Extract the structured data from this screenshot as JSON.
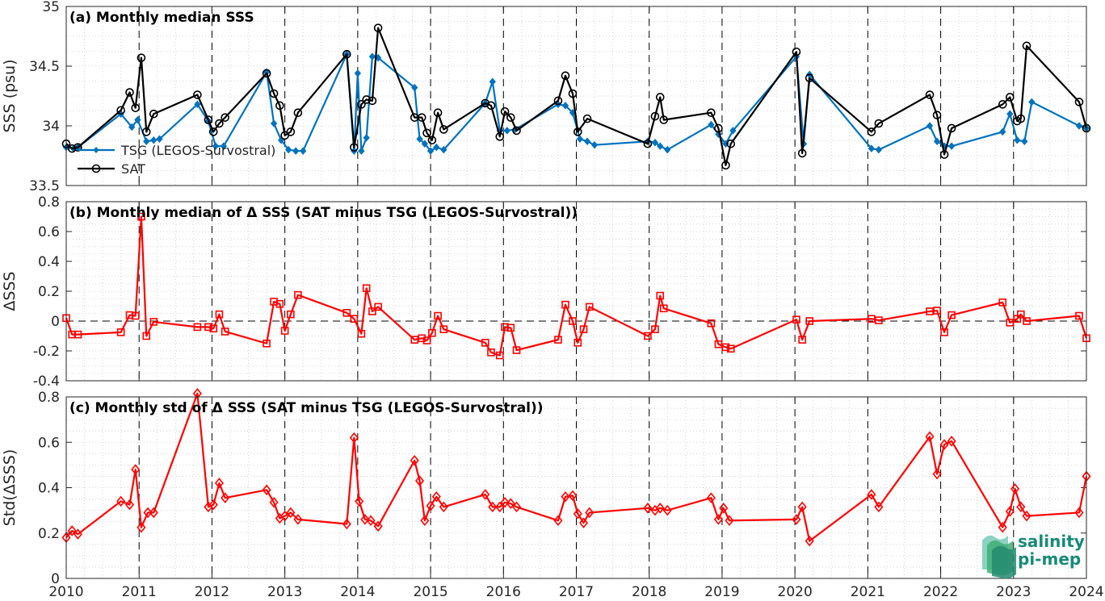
{
  "chart_data": [
    {
      "type": "line",
      "title": "(a) Monthly median SSS",
      "ylabel": "SSS (psu)",
      "xlim": [
        2010,
        2024
      ],
      "ylim": [
        33.5,
        35
      ],
      "yticks": [
        33.5,
        34,
        34.5,
        35
      ],
      "yticklabels": [
        "33.5",
        "34",
        "34.5",
        "35"
      ],
      "grid": "dotted minor",
      "legend_position": "bottom-left",
      "series": [
        {
          "name": "TSG (LEGOS-Survostral)",
          "color": "#0072BD",
          "marker": "diamond-filled",
          "x": [
            2010.0,
            2010.1,
            2010.16,
            2010.75,
            2010.9,
            2010.98,
            2011.1,
            2011.2,
            2011.28,
            2011.8,
            2011.95,
            2012.05,
            2012.16,
            2012.75,
            2012.85,
            2012.95,
            2013.05,
            2013.15,
            2013.25,
            2013.85,
            2013.95,
            2014.0,
            2014.05,
            2014.12,
            2014.2,
            2014.28,
            2014.78,
            2014.85,
            2014.92,
            2015.0,
            2015.08,
            2015.18,
            2015.75,
            2015.85,
            2015.95,
            2016.05,
            2016.16,
            2016.75,
            2016.85,
            2016.95,
            2017.05,
            2017.15,
            2017.25,
            2017.98,
            2018.08,
            2018.15,
            2018.25,
            2018.85,
            2018.95,
            2019.05,
            2019.15,
            2020.02,
            2020.12,
            2020.2,
            2021.05,
            2021.15,
            2021.85,
            2021.95,
            2022.05,
            2022.15,
            2022.85,
            2022.95,
            2023.05,
            2023.15,
            2023.25,
            2023.9,
            2024.0
          ],
          "values": [
            33.82,
            33.81,
            33.82,
            34.1,
            33.99,
            34.05,
            33.87,
            33.88,
            33.89,
            34.18,
            34.04,
            33.83,
            33.83,
            34.45,
            34.02,
            33.88,
            33.8,
            33.79,
            33.79,
            34.6,
            33.79,
            34.44,
            33.79,
            33.9,
            34.58,
            34.57,
            34.32,
            33.89,
            33.85,
            33.79,
            33.82,
            33.8,
            34.19,
            34.37,
            33.96,
            33.96,
            33.97,
            34.18,
            34.17,
            34.11,
            33.89,
            33.87,
            33.84,
            33.87,
            33.86,
            33.83,
            33.8,
            34.01,
            33.93,
            33.85,
            33.96,
            34.58,
            33.85,
            34.43,
            33.81,
            33.8,
            34.0,
            33.87,
            33.83,
            33.83,
            33.95,
            34.1,
            33.88,
            33.87,
            34.2,
            34.0,
            33.98
          ]
        },
        {
          "name": "SAT",
          "color": "#000000",
          "marker": "circle-open",
          "x": [
            2010.0,
            2010.08,
            2010.16,
            2010.75,
            2010.87,
            2010.95,
            2011.03,
            2011.1,
            2011.2,
            2011.8,
            2011.95,
            2012.02,
            2012.1,
            2012.18,
            2012.75,
            2012.85,
            2012.93,
            2013.0,
            2013.08,
            2013.18,
            2013.85,
            2013.95,
            2014.05,
            2014.12,
            2014.2,
            2014.28,
            2014.78,
            2014.88,
            2014.95,
            2015.02,
            2015.1,
            2015.18,
            2015.75,
            2015.83,
            2015.95,
            2016.02,
            2016.1,
            2016.18,
            2016.75,
            2016.85,
            2016.95,
            2017.02,
            2017.15,
            2017.98,
            2018.08,
            2018.15,
            2018.2,
            2018.85,
            2018.95,
            2019.05,
            2019.12,
            2020.02,
            2020.1,
            2020.2,
            2021.05,
            2021.15,
            2021.85,
            2021.95,
            2022.05,
            2022.15,
            2022.85,
            2022.95,
            2023.05,
            2023.1,
            2023.18,
            2023.9,
            2024.0
          ],
          "values": [
            33.85,
            33.81,
            33.82,
            34.13,
            34.28,
            34.15,
            34.57,
            33.95,
            34.1,
            34.26,
            34.05,
            33.95,
            34.02,
            34.07,
            34.44,
            34.27,
            34.17,
            33.92,
            33.95,
            34.11,
            34.6,
            33.82,
            34.18,
            34.22,
            34.21,
            34.82,
            34.07,
            34.07,
            33.94,
            33.88,
            34.11,
            33.97,
            34.19,
            34.17,
            33.91,
            34.12,
            34.07,
            33.96,
            34.21,
            34.42,
            34.27,
            33.95,
            34.06,
            33.85,
            34.08,
            34.24,
            34.05,
            34.11,
            33.98,
            33.67,
            33.85,
            34.62,
            33.77,
            34.4,
            33.95,
            34.02,
            34.26,
            34.09,
            33.76,
            33.98,
            34.18,
            34.24,
            34.04,
            34.06,
            34.67,
            34.2,
            33.98
          ]
        }
      ]
    },
    {
      "type": "line",
      "title": "(b) Monthly median of Δ SSS (SAT minus TSG (LEGOS-Survostral))",
      "ylabel": "ΔSSS",
      "xlim": [
        2010,
        2024
      ],
      "ylim": [
        -0.4,
        0.8
      ],
      "yticks": [
        -0.4,
        -0.2,
        0,
        0.2,
        0.4,
        0.6,
        0.8
      ],
      "yticklabels": [
        "-0.4",
        "-0.2",
        "0",
        "0.2",
        "0.4",
        "0.6",
        "0.8"
      ],
      "grid": "dotted minor",
      "zero_line": "dashed",
      "series": [
        {
          "name": "",
          "color": "#FF0000",
          "marker": "square-open",
          "x": [
            2010.0,
            2010.08,
            2010.16,
            2010.75,
            2010.87,
            2010.95,
            2011.03,
            2011.1,
            2011.2,
            2011.8,
            2011.95,
            2012.02,
            2012.1,
            2012.18,
            2012.75,
            2012.85,
            2012.93,
            2013.0,
            2013.08,
            2013.18,
            2013.85,
            2013.95,
            2014.05,
            2014.12,
            2014.2,
            2014.28,
            2014.78,
            2014.88,
            2014.95,
            2015.02,
            2015.1,
            2015.18,
            2015.75,
            2015.83,
            2015.95,
            2016.02,
            2016.1,
            2016.18,
            2016.75,
            2016.85,
            2016.95,
            2017.02,
            2017.1,
            2017.18,
            2017.98,
            2018.08,
            2018.15,
            2018.2,
            2018.85,
            2018.95,
            2019.05,
            2019.12,
            2020.02,
            2020.1,
            2020.2,
            2021.05,
            2021.15,
            2021.85,
            2021.95,
            2022.05,
            2022.15,
            2022.85,
            2022.95,
            2023.05,
            2023.1,
            2023.18,
            2023.9,
            2024.0
          ],
          "values": [
            0.02,
            -0.09,
            -0.09,
            -0.075,
            0.04,
            0.035,
            0.7,
            -0.1,
            -0.005,
            -0.04,
            -0.04,
            -0.05,
            0.045,
            -0.07,
            -0.15,
            0.13,
            0.115,
            -0.065,
            0.045,
            0.175,
            0.055,
            0.015,
            -0.085,
            0.22,
            0.065,
            0.095,
            -0.125,
            -0.115,
            -0.13,
            -0.08,
            0.035,
            -0.055,
            -0.145,
            -0.21,
            -0.23,
            -0.04,
            -0.045,
            -0.195,
            -0.125,
            0.11,
            0.0,
            -0.145,
            -0.055,
            0.095,
            -0.1,
            -0.055,
            0.17,
            0.085,
            -0.015,
            -0.155,
            -0.175,
            -0.185,
            0.01,
            -0.125,
            0.0,
            0.015,
            0.005,
            0.065,
            0.07,
            -0.075,
            0.04,
            0.125,
            -0.01,
            0.015,
            0.045,
            0.0,
            0.035,
            -0.115
          ]
        }
      ]
    },
    {
      "type": "line",
      "title": "(c) Monthly std of Δ SSS (SAT minus TSG (LEGOS-Survostral))",
      "ylabel": "Std(ΔSSS)",
      "xlabel": "",
      "xlim": [
        2010,
        2024
      ],
      "ylim": [
        0,
        0.8
      ],
      "yticks": [
        0,
        0.2,
        0.4,
        0.6,
        0.8
      ],
      "yticklabels": [
        "0",
        "0.2",
        "0.4",
        "0.6",
        "0.8"
      ],
      "xticks": [
        2010,
        2011,
        2012,
        2013,
        2014,
        2015,
        2016,
        2017,
        2018,
        2019,
        2020,
        2021,
        2022,
        2023,
        2024
      ],
      "xticklabels": [
        "2010",
        "2011",
        "2012",
        "2013",
        "2014",
        "2015",
        "2016",
        "2017",
        "2018",
        "2019",
        "2020",
        "2021",
        "2022",
        "2023",
        "2024"
      ],
      "grid": "dotted minor",
      "series": [
        {
          "name": "",
          "color": "#FF0000",
          "marker": "diamond-open",
          "x": [
            2010.0,
            2010.08,
            2010.16,
            2010.75,
            2010.87,
            2010.95,
            2011.03,
            2011.12,
            2011.2,
            2011.8,
            2011.95,
            2012.02,
            2012.1,
            2012.18,
            2012.75,
            2012.85,
            2012.93,
            2013.0,
            2013.08,
            2013.18,
            2013.85,
            2013.95,
            2014.02,
            2014.1,
            2014.18,
            2014.28,
            2014.78,
            2014.85,
            2014.92,
            2015.0,
            2015.08,
            2015.18,
            2015.75,
            2015.85,
            2015.95,
            2016.02,
            2016.1,
            2016.18,
            2016.75,
            2016.85,
            2016.95,
            2017.02,
            2017.1,
            2017.18,
            2017.98,
            2018.08,
            2018.15,
            2018.25,
            2018.85,
            2018.95,
            2019.02,
            2019.1,
            2020.02,
            2020.1,
            2020.2,
            2021.05,
            2021.15,
            2021.85,
            2021.95,
            2022.05,
            2022.15,
            2022.85,
            2022.95,
            2023.02,
            2023.1,
            2023.18,
            2023.9,
            2024.0
          ],
          "values": [
            0.18,
            0.21,
            0.195,
            0.34,
            0.325,
            0.48,
            0.225,
            0.29,
            0.29,
            0.815,
            0.315,
            0.325,
            0.42,
            0.355,
            0.39,
            0.335,
            0.265,
            0.275,
            0.29,
            0.26,
            0.24,
            0.62,
            0.34,
            0.26,
            0.255,
            0.23,
            0.52,
            0.43,
            0.255,
            0.32,
            0.36,
            0.315,
            0.37,
            0.315,
            0.315,
            0.335,
            0.33,
            0.315,
            0.255,
            0.36,
            0.365,
            0.285,
            0.245,
            0.29,
            0.31,
            0.3,
            0.31,
            0.3,
            0.355,
            0.26,
            0.31,
            0.255,
            0.26,
            0.315,
            0.165,
            0.37,
            0.315,
            0.625,
            0.46,
            0.59,
            0.605,
            0.225,
            0.295,
            0.395,
            0.315,
            0.275,
            0.29,
            0.45
          ]
        }
      ]
    }
  ],
  "logo": {
    "line1": "salinity",
    "line2": "pi-mep",
    "color": "#1a8a78"
  }
}
